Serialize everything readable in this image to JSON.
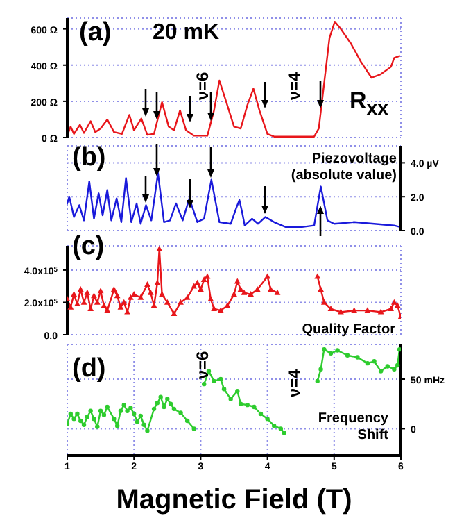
{
  "chart_data": [
    {
      "type": "line",
      "annotations": [
        "(a)",
        "20 mK",
        "ν=6",
        "ν=4",
        "R$_{xx}$"
      ],
      "xlim": [
        1,
        6
      ],
      "xticks": [
        1,
        2,
        3,
        4,
        5,
        6
      ],
      "ylim": [
        0,
        660
      ],
      "yticks": [
        {
          "value": 0,
          "label": "0 Ω"
        },
        {
          "value": 200,
          "label": "200 Ω"
        },
        {
          "value": 400,
          "label": "400 Ω"
        },
        {
          "value": 600,
          "label": "600 Ω"
        }
      ],
      "grid": true,
      "tick_labels": "y",
      "marker": "none",
      "x": [
        1.0,
        1.05,
        1.1,
        1.19,
        1.25,
        1.35,
        1.42,
        1.5,
        1.6,
        1.7,
        1.82,
        1.93,
        2.0,
        2.11,
        2.2,
        2.3,
        2.42,
        2.52,
        2.6,
        2.69,
        2.78,
        2.9,
        3.1,
        3.2,
        3.28,
        3.38,
        3.5,
        3.6,
        3.7,
        3.79,
        3.88,
        4.0,
        4.1,
        4.3,
        4.7,
        4.77,
        4.85,
        4.93,
        5.01,
        5.1,
        5.25,
        5.4,
        5.56,
        5.7,
        5.85,
        5.9,
        5.98
      ],
      "series": [
        {
          "color": "#e8161b",
          "values": [
            10,
            60,
            20,
            70,
            25,
            90,
            30,
            50,
            100,
            30,
            20,
            125,
            40,
            105,
            15,
            20,
            195,
            60,
            40,
            150,
            40,
            10,
            10,
            150,
            315,
            200,
            60,
            50,
            180,
            270,
            150,
            20,
            5,
            5,
            5,
            50,
            300,
            550,
            640,
            600,
            520,
            420,
            330,
            350,
            390,
            440,
            450
          ]
        }
      ]
    },
    {
      "type": "line",
      "annotations": [
        "(b)",
        "Piezovoltage",
        "(absolute value)"
      ],
      "xlim": [
        1,
        6
      ],
      "xticks": [
        1,
        2,
        3,
        4,
        5,
        6
      ],
      "y2lim": [
        0,
        5
      ],
      "y2ticks": [
        {
          "value": 0,
          "label": "0.0"
        },
        {
          "value": 2,
          "label": "2.0"
        },
        {
          "value": 4,
          "label": "4.0 µV"
        }
      ],
      "grid": true,
      "tick_labels": "y",
      "marker": "none",
      "x": [
        1.0,
        1.03,
        1.1,
        1.18,
        1.25,
        1.33,
        1.4,
        1.47,
        1.53,
        1.6,
        1.66,
        1.74,
        1.81,
        1.88,
        1.96,
        2.04,
        2.1,
        2.18,
        2.26,
        2.36,
        2.45,
        2.54,
        2.63,
        2.73,
        2.83,
        2.95,
        3.05,
        3.16,
        3.28,
        3.45,
        3.53,
        3.58,
        3.62,
        3.66,
        3.77,
        3.86,
        3.97,
        4.1,
        4.28,
        4.5,
        4.7,
        4.8,
        4.9,
        5.0,
        5.3,
        5.6,
        5.9,
        6.0
      ],
      "series": [
        {
          "axis": "y2",
          "color": "#1a1adb",
          "values": [
            1.6,
            2.0,
            0.8,
            1.5,
            0.6,
            2.9,
            0.7,
            2.2,
            0.9,
            2.4,
            0.6,
            1.9,
            0.5,
            3.1,
            0.5,
            1.6,
            0.4,
            1.5,
            0.6,
            3.4,
            0.5,
            0.6,
            1.6,
            0.6,
            1.9,
            0.5,
            0.7,
            3.0,
            0.5,
            0.4,
            1.3,
            1.8,
            1.1,
            0.3,
            0.7,
            0.4,
            0.8,
            0.5,
            0.2,
            0.2,
            0.3,
            2.6,
            0.6,
            0.4,
            0.5,
            0.4,
            0.3,
            0.2
          ]
        }
      ]
    },
    {
      "type": "line",
      "annotations": [
        "(c)",
        "Quality Factor"
      ],
      "xlim": [
        1,
        6
      ],
      "xticks": [
        1,
        2,
        3,
        4,
        5,
        6
      ],
      "ylim": [
        0,
        550000
      ],
      "yticks": [
        {
          "value": 0,
          "label": "0.0"
        },
        {
          "value": 200000,
          "label": "2.0x10$^{5}$"
        },
        {
          "value": 400000,
          "label": "4.0x10$^{5}$"
        }
      ],
      "grid": true,
      "tick_labels": "y",
      "marker": "triangle",
      "x": [
        1.0,
        1.05,
        1.1,
        1.15,
        1.2,
        1.25,
        1.3,
        1.35,
        1.4,
        1.45,
        1.5,
        1.55,
        1.6,
        1.7,
        1.75,
        1.8,
        1.85,
        1.9,
        1.95,
        2.0,
        2.1,
        2.2,
        2.25,
        2.3,
        2.35,
        2.38,
        2.42,
        2.5,
        2.6,
        2.7,
        2.8,
        2.9,
        2.95,
        3.0,
        3.05,
        3.1,
        3.15,
        3.2,
        3.3,
        3.4,
        3.5,
        3.55,
        3.6,
        3.65,
        3.75,
        3.85,
        4.0,
        4.05,
        4.15,
        4.4,
        4.75,
        4.8,
        4.85,
        4.95,
        5.1,
        5.3,
        5.5,
        5.7,
        5.85,
        5.9,
        5.95,
        6.0
      ],
      "series": [
        {
          "color": "#e8161b",
          "values": [
            220000,
            170000,
            250000,
            190000,
            280000,
            200000,
            260000,
            160000,
            240000,
            200000,
            270000,
            180000,
            150000,
            280000,
            240000,
            170000,
            200000,
            140000,
            230000,
            250000,
            230000,
            310000,
            260000,
            180000,
            320000,
            530000,
            250000,
            200000,
            130000,
            200000,
            230000,
            300000,
            320000,
            280000,
            340000,
            360000,
            220000,
            160000,
            150000,
            180000,
            250000,
            330000,
            280000,
            260000,
            250000,
            280000,
            360000,
            280000,
            260000,
            null,
            360000,
            280000,
            200000,
            160000,
            140000,
            150000,
            150000,
            140000,
            160000,
            200000,
            180000,
            110000
          ]
        }
      ]
    },
    {
      "type": "line",
      "annotations": [
        "(d)",
        "ν=6",
        "ν=4",
        "Frequency",
        "Shift"
      ],
      "xlabel": "Magnetic Field (T)",
      "xlim": [
        1,
        6
      ],
      "xticks": [
        1,
        2,
        3,
        4,
        5,
        6
      ],
      "y2lim": [
        -27,
        85
      ],
      "y2ticks": [
        {
          "value": 0,
          "label": "0"
        },
        {
          "value": 50,
          "label": "50 mHz"
        }
      ],
      "grid": true,
      "marker": "circle",
      "x": [
        1.0,
        1.05,
        1.1,
        1.15,
        1.2,
        1.25,
        1.3,
        1.35,
        1.4,
        1.45,
        1.5,
        1.55,
        1.6,
        1.7,
        1.75,
        1.8,
        1.85,
        1.9,
        1.95,
        2.0,
        2.05,
        2.1,
        2.15,
        2.2,
        2.3,
        2.35,
        2.4,
        2.45,
        2.5,
        2.55,
        2.6,
        2.7,
        2.8,
        2.9,
        3.0,
        3.05,
        3.12,
        3.2,
        3.3,
        3.35,
        3.45,
        3.55,
        3.6,
        3.7,
        3.8,
        3.9,
        4.0,
        4.1,
        4.2,
        4.25,
        4.5,
        4.75,
        4.8,
        4.85,
        4.95,
        5.05,
        5.2,
        5.35,
        5.5,
        5.6,
        5.7,
        5.8,
        5.9,
        5.95,
        5.98
      ],
      "series": [
        {
          "axis": "y2",
          "color": "#2ecc2e",
          "values": [
            5,
            15,
            10,
            15,
            8,
            4,
            12,
            18,
            10,
            2,
            18,
            14,
            22,
            10,
            3,
            18,
            24,
            18,
            21,
            15,
            7,
            13,
            4,
            -2,
            20,
            26,
            32,
            22,
            30,
            25,
            20,
            16,
            8,
            0,
            null,
            45,
            58,
            48,
            50,
            40,
            30,
            38,
            25,
            24,
            22,
            15,
            10,
            3,
            0,
            -4,
            null,
            48,
            60,
            80,
            76,
            79,
            74,
            72,
            66,
            68,
            58,
            63,
            60,
            64,
            80
          ]
        }
      ]
    }
  ]
}
